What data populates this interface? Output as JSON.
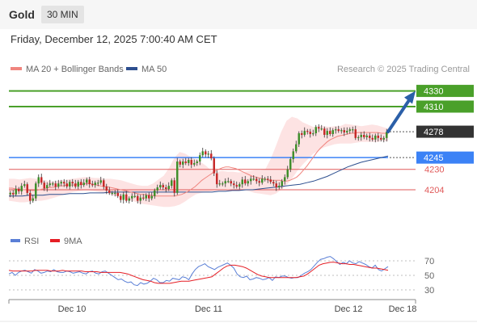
{
  "header": {
    "title": "Gold",
    "interval": "30 MIN"
  },
  "datetime": "Friday, December 12, 2025 7:00:40 AM CET",
  "legend": {
    "ma20": {
      "label": "MA 20 + Bollinger Bands",
      "color": "#f0857f"
    },
    "ma50": {
      "label": "MA 50",
      "color": "#2d4f8f"
    },
    "rsi": {
      "label": "RSI",
      "color": "#5a7fd6"
    },
    "ma9": {
      "label": "9MA",
      "color": "#e51e25"
    }
  },
  "credit": "Research © 2025 Trading Central",
  "colors": {
    "up": "#3e8e2a",
    "down": "#c62828",
    "bands": "#fde3e3",
    "target": "#4aa02a",
    "pivot": "#3b82f6",
    "support": "#e05a5a",
    "current": "#333333",
    "arrow": "#2b5fa8"
  },
  "chart_data": [
    {
      "type": "candlestick",
      "ylim": [
        4170,
        4345
      ],
      "x_ticks": [
        "Dec 10",
        "Dec 11",
        "Dec 12",
        "Dec 18"
      ],
      "levels": [
        {
          "value": 4330,
          "label": "4330",
          "kind": "target"
        },
        {
          "value": 4310,
          "label": "4310",
          "kind": "target"
        },
        {
          "value": 4278,
          "label": "4278",
          "kind": "current"
        },
        {
          "value": 4245,
          "label": "4245",
          "kind": "pivot"
        },
        {
          "value": 4230,
          "label": "4230",
          "kind": "support"
        },
        {
          "value": 4204,
          "label": "4204",
          "kind": "support"
        }
      ],
      "close": [
        4200,
        4198,
        4205,
        4202,
        4209,
        4211,
        4200,
        4190,
        4193,
        4212,
        4220,
        4213,
        4206,
        4210,
        4212,
        4212,
        4208,
        4212,
        4214,
        4212,
        4208,
        4214,
        4212,
        4208,
        4214,
        4210,
        4213,
        4217,
        4211,
        4210,
        4213,
        4213,
        4216,
        4208,
        4203,
        4200,
        4200,
        4200,
        4196,
        4191,
        4198,
        4190,
        4193,
        4196,
        4196,
        4190,
        4194,
        4193,
        4197,
        4193,
        4196,
        4203,
        4207,
        4210,
        4207,
        4205,
        4209,
        4216,
        4200,
        4240,
        4236,
        4240,
        4238,
        4242,
        4236,
        4238,
        4240,
        4248,
        4253,
        4249,
        4250,
        4244,
        4225,
        4211,
        4212,
        4212,
        4215,
        4215,
        4212,
        4210,
        4208,
        4211,
        4217,
        4212,
        4215,
        4218,
        4218,
        4215,
        4213,
        4218,
        4218,
        4217,
        4214,
        4212,
        4207,
        4209,
        4215,
        4220,
        4230,
        4243,
        4253,
        4262,
        4276,
        4274,
        4279,
        4278,
        4275,
        4276,
        4284,
        4282,
        4282,
        4274,
        4279,
        4275,
        4280,
        4281,
        4279,
        4280,
        4277,
        4279,
        4281,
        4281,
        4270,
        4271,
        4274,
        4271,
        4273,
        4270,
        4268,
        4273,
        4270,
        4268,
        4270,
        4278
      ],
      "ma20": [
        4206,
        4206,
        4205,
        4205,
        4204,
        4204,
        4203,
        4203,
        4203,
        4204,
        4205,
        4206,
        4207,
        4207,
        4208,
        4209,
        4209,
        4210,
        4210,
        4210,
        4211,
        4211,
        4211,
        4212,
        4212,
        4211,
        4210,
        4209,
        4208,
        4208,
        4207,
        4206,
        4205,
        4204,
        4203,
        4202,
        4201,
        4200,
        4199,
        4198,
        4198,
        4197,
        4197,
        4196,
        4196,
        4196,
        4196,
        4196,
        4196,
        4196,
        4197,
        4198,
        4200,
        4202,
        4205,
        4208,
        4212,
        4216,
        4219,
        4222,
        4225,
        4228,
        4230,
        4232,
        4233,
        4233,
        4232,
        4231,
        4229,
        4227,
        4225,
        4223,
        4221,
        4220,
        4219,
        4218,
        4217,
        4216,
        4216,
        4216,
        4216,
        4215,
        4215,
        4216,
        4218,
        4220,
        4224,
        4229,
        4234,
        4240,
        4246,
        4252,
        4257,
        4261,
        4265,
        4268,
        4270,
        4272,
        4273,
        4274,
        4275,
        4276,
        4276,
        4277,
        4277,
        4277,
        4277,
        4277,
        4277,
        4277,
        4276,
        4276,
        4275
      ],
      "ma50": [
        4196,
        4196,
        4196,
        4197,
        4197,
        4197,
        4198,
        4198,
        4198,
        4199,
        4199,
        4199,
        4200,
        4200,
        4200,
        4201,
        4201,
        4201,
        4201,
        4201,
        4201,
        4201,
        4201,
        4201,
        4201,
        4201,
        4201,
        4201,
        4201,
        4201,
        4201,
        4202,
        4202,
        4203,
        4203,
        4204,
        4204,
        4205,
        4206,
        4207,
        4208,
        4209,
        4210,
        4211,
        4213,
        4215,
        4218,
        4221,
        4225,
        4229,
        4233,
        4236,
        4239,
        4241,
        4243,
        4245,
        4247
      ],
      "bb_upper": [
        4218,
        4218,
        4217,
        4218,
        4219,
        4218,
        4217,
        4216,
        4214,
        4215,
        4216,
        4217,
        4218,
        4219,
        4220,
        4220,
        4219,
        4219,
        4218,
        4218,
        4217,
        4216,
        4214,
        4212,
        4210,
        4209,
        4209,
        4212,
        4217,
        4222,
        4232,
        4245,
        4252,
        4250,
        4246,
        4243,
        4239,
        4234,
        4228,
        4227,
        4228,
        4227,
        4227,
        4226,
        4227,
        4228,
        4229,
        4229,
        4230,
        4243,
        4260,
        4278,
        4292,
        4297,
        4295,
        4290,
        4287,
        4284,
        4285,
        4285,
        4284,
        4285,
        4285,
        4288,
        4287,
        4286,
        4285,
        4286,
        4287,
        4286,
        4284,
        4282
      ],
      "bb_lower": [
        4190,
        4189,
        4188,
        4188,
        4189,
        4190,
        4190,
        4191,
        4193,
        4195,
        4197,
        4199,
        4201,
        4202,
        4203,
        4203,
        4202,
        4201,
        4200,
        4198,
        4196,
        4194,
        4192,
        4190,
        4188,
        4186,
        4185,
        4184,
        4183,
        4182,
        4182,
        4183,
        4185,
        4189,
        4194,
        4198,
        4200,
        4201,
        4202,
        4203,
        4204,
        4205,
        4205,
        4204,
        4203,
        4202,
        4200,
        4199,
        4198,
        4197,
        4199,
        4204,
        4210,
        4218,
        4228,
        4236,
        4243,
        4250,
        4254,
        4258,
        4260,
        4262,
        4263,
        4263,
        4263,
        4264,
        4265,
        4265,
        4265,
        4265,
        4266,
        4266
      ]
    },
    {
      "type": "line",
      "ylim": [
        20,
        80
      ],
      "y_ticks": [
        70,
        50,
        30
      ],
      "series": [
        {
          "name": "RSI",
          "values": [
            52,
            54,
            50,
            54,
            56,
            57,
            55,
            53,
            58,
            56,
            53,
            54,
            56,
            55,
            58,
            55,
            54,
            54,
            56,
            55,
            53,
            54,
            55,
            53,
            52,
            55,
            56,
            53,
            52,
            55,
            56,
            53,
            50,
            47,
            44,
            45,
            42,
            40,
            41,
            37,
            36,
            40,
            38,
            39,
            42,
            46,
            44,
            40,
            40,
            43,
            42,
            46,
            45,
            44,
            48,
            47,
            44,
            52,
            58,
            62,
            64,
            66,
            62,
            60,
            58,
            61,
            63,
            65,
            67,
            64,
            60,
            52,
            48,
            47,
            49,
            44,
            45,
            47,
            46,
            44,
            45,
            47,
            43,
            48,
            47,
            49,
            49,
            47,
            46,
            47,
            47,
            50,
            53,
            55,
            58,
            63,
            68,
            72,
            73,
            75,
            76,
            73,
            69,
            65,
            68,
            66,
            70,
            67,
            66,
            69,
            67,
            65,
            62,
            60,
            64,
            58,
            56,
            59,
            62
          ]
        },
        {
          "name": "9MA",
          "values": [
            57,
            56,
            56,
            56,
            56,
            56,
            56,
            57,
            57,
            57,
            57,
            56,
            56,
            56,
            57,
            56,
            56,
            56,
            56,
            56,
            55,
            55,
            55,
            55,
            54,
            54,
            54,
            54,
            54,
            54,
            53,
            52,
            50,
            48,
            46,
            44,
            43,
            42,
            40,
            39,
            39,
            39,
            39,
            40,
            41,
            42,
            42,
            42,
            43,
            44,
            45,
            46,
            47,
            48,
            52,
            56,
            60,
            63,
            64,
            64,
            63,
            62,
            60,
            57,
            54,
            51,
            49,
            48,
            47,
            47,
            47,
            47,
            47,
            47,
            47,
            47,
            48,
            49,
            52,
            56,
            60,
            64,
            66,
            67,
            68,
            68,
            67,
            66,
            66,
            65,
            65,
            64,
            63,
            62,
            61,
            60,
            60,
            59,
            58,
            57
          ]
        }
      ]
    }
  ]
}
